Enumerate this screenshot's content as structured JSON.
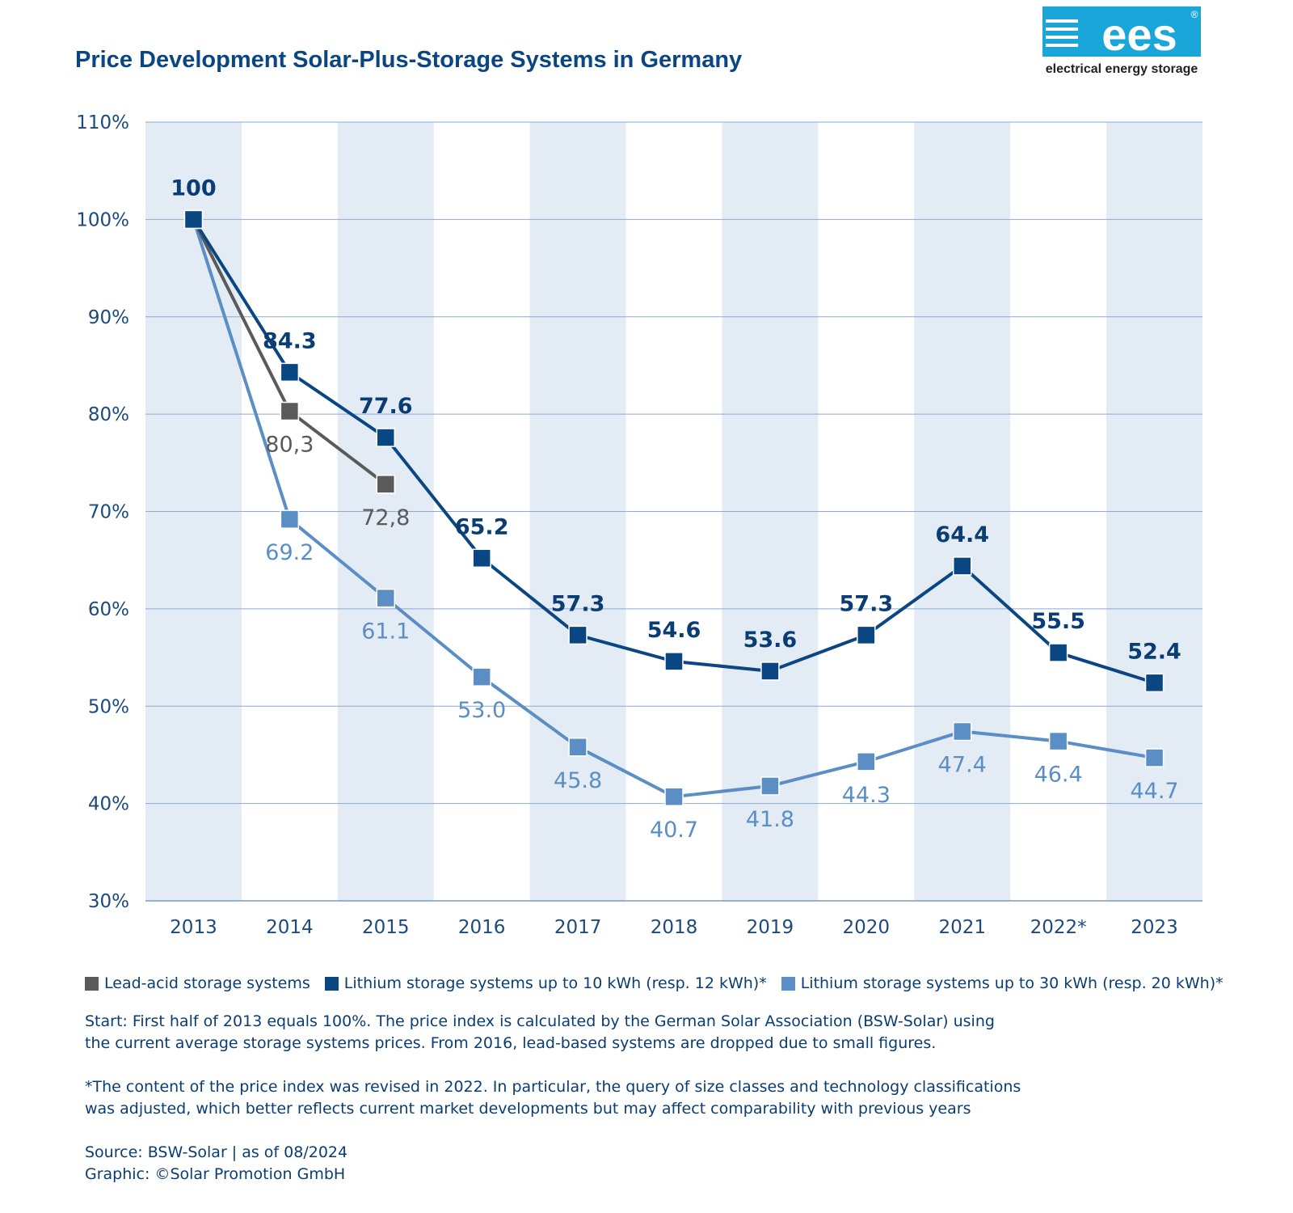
{
  "header": {
    "title": "Price Development Solar-Plus-Storage Systems in Germany"
  },
  "logo": {
    "text": "ees",
    "registered": "®",
    "subtitle": "electrical energy storage",
    "color": "#1aa6d9"
  },
  "chart_data": {
    "type": "line",
    "categories": [
      "2013",
      "2014",
      "2015",
      "2016",
      "2017",
      "2018",
      "2019",
      "2020",
      "2021",
      "2022*",
      "2023"
    ],
    "ylim": [
      30,
      110
    ],
    "yticks": [
      30,
      40,
      50,
      60,
      70,
      80,
      90,
      100,
      110
    ],
    "ytick_labels": [
      "30%",
      "40%",
      "50%",
      "60%",
      "70%",
      "80%",
      "90%",
      "100%",
      "110%"
    ],
    "grid": "horizontal",
    "alternating_column_shading": true,
    "legend_position": "bottom-left",
    "series": [
      {
        "name": "Lead-acid storage systems",
        "color": "#5a5a5a",
        "values": [
          100,
          80.3,
          72.8,
          null,
          null,
          null,
          null,
          null,
          null,
          null,
          null
        ],
        "labels": [
          null,
          "80,3",
          "72,8",
          null,
          null,
          null,
          null,
          null,
          null,
          null,
          null
        ],
        "label_position": "below"
      },
      {
        "name": "Lithium storage systems up to 10 kWh (resp. 12 kWh)*",
        "color": "#0a4682",
        "values": [
          100,
          84.3,
          77.6,
          65.2,
          57.3,
          54.6,
          53.6,
          57.3,
          64.4,
          55.5,
          52.4
        ],
        "labels": [
          "100",
          "84.3",
          "77.6",
          "65.2",
          "57.3",
          "54.6",
          "53.6",
          "57.3",
          "64.4",
          "55.5",
          "52.4"
        ],
        "label_position": "above"
      },
      {
        "name": "Lithium storage systems up to 30 kWh (resp. 20 kWh)*",
        "color": "#5b8ec4",
        "values": [
          100,
          69.2,
          61.1,
          53.0,
          45.8,
          40.7,
          41.8,
          44.3,
          47.4,
          46.4,
          44.7
        ],
        "labels": [
          null,
          "69.2",
          "61.1",
          "53.0",
          "45.8",
          "40.7",
          "41.8",
          "44.3",
          "47.4",
          "46.4",
          "44.7"
        ],
        "label_position": "below"
      }
    ]
  },
  "legend": {
    "items": [
      {
        "label": "Lead-acid storage systems",
        "color": "#5a5a5a"
      },
      {
        "label": "Lithium storage systems up to 10 kWh (resp. 12 kWh)*",
        "color": "#0a4682"
      },
      {
        "label": "Lithium storage systems up to 30 kWh (resp. 20 kWh)*",
        "color": "#5b8ec4"
      }
    ]
  },
  "notes": {
    "start_line1": "Start: First half of 2013 equals 100%. The price index is calculated by the German Solar Association (BSW-Solar) using",
    "start_line2": "the current average storage systems prices. From 2016, lead-based systems are dropped due to small figures.",
    "revision_line1": "*The content of the price index was revised in 2022. In particular, the query of size classes and technology classifications",
    "revision_line2": "was adjusted, which better reflects current market developments but may affect comparability with previous years",
    "source": "Source: BSW-Solar | as of 08/2024",
    "graphic": "Graphic: ©Solar Promotion GmbH"
  }
}
